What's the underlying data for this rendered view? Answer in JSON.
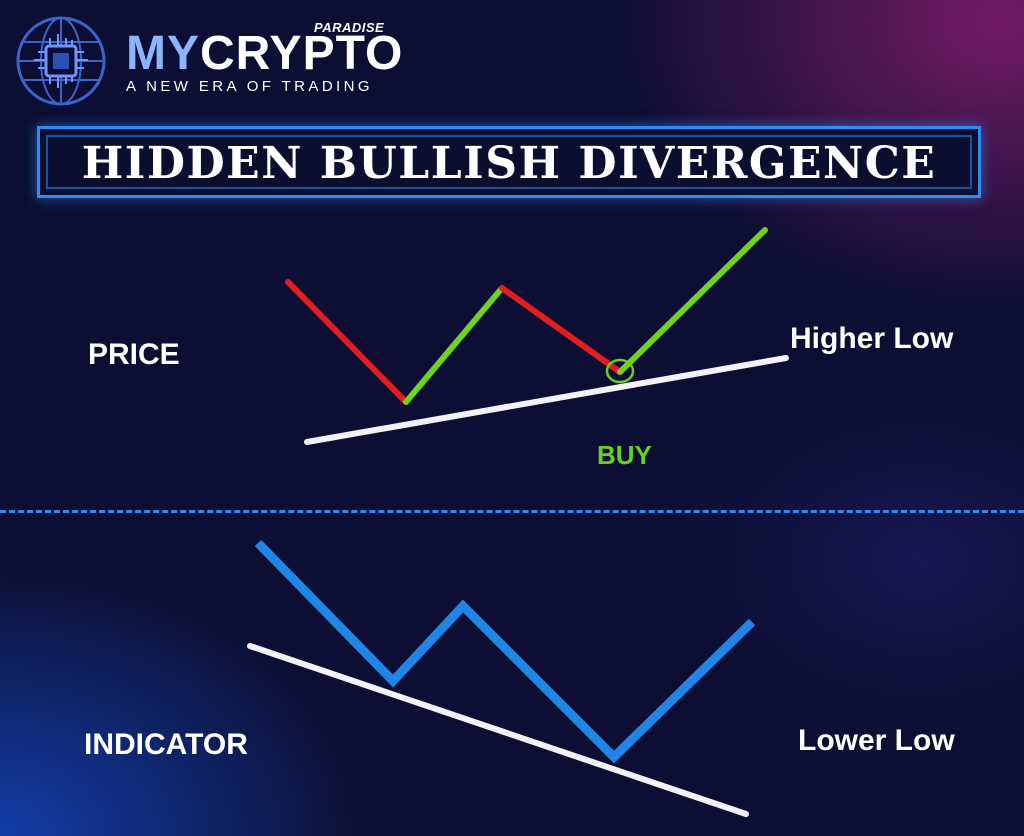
{
  "brand": {
    "name_part1": "MY",
    "name_part2": "CRYPTO",
    "tag": "PARADISE",
    "tagline": "A NEW ERA OF TRADING",
    "logo_icon": "globe-chip-icon"
  },
  "title": "HIDDEN BULLISH DIVERGENCE",
  "price_section": {
    "label": "PRICE",
    "trend_label": "Higher Low",
    "signal_label": "BUY",
    "colors": {
      "down": "#e11d1d",
      "up": "#6fd21e",
      "trendline": "#f2f2f6",
      "signal": "#66d21b"
    }
  },
  "indicator_section": {
    "label": "INDICATOR",
    "trend_label": "Lower Low",
    "colors": {
      "line": "#1f86e8",
      "trendline": "#f2f2f6"
    }
  },
  "divider_color": "#2e8cf0"
}
